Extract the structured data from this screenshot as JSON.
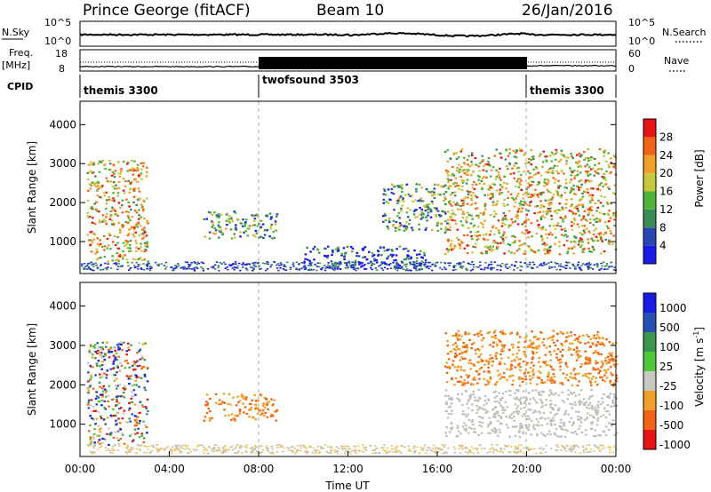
{
  "header": {
    "station": "Prince George (fitACF)",
    "beam": "Beam 10",
    "date": "26/Jan/2016"
  },
  "noise_panel": {
    "left_label": "N.Sky",
    "right_label": "N.Search",
    "left_ticks": [
      "10^5",
      "10^0"
    ],
    "right_ticks": [
      "10^5",
      "10^0"
    ]
  },
  "freq_panel": {
    "left_label_1": "Freq.",
    "left_label_2": "[MHz]",
    "right_label": "Nave",
    "left_ticks": [
      "18",
      "8"
    ],
    "right_ticks": [
      "60",
      "0"
    ]
  },
  "cpid_panel": {
    "label": "CPID",
    "modes": [
      {
        "name": "themis 3300",
        "start_hour": 0,
        "end_hour": 8
      },
      {
        "name": "twofsound 3503",
        "start_hour": 8,
        "end_hour": 20
      },
      {
        "name": "themis 3300",
        "start_hour": 20,
        "end_hour": 24
      }
    ]
  },
  "x_axis": {
    "label": "Time UT",
    "ticks": [
      "00:00",
      "04:00",
      "08:00",
      "12:00",
      "16:00",
      "20:00",
      "00:00"
    ]
  },
  "colors": {
    "power_scale": [
      "#1a1ae6",
      "#2846b4",
      "#3c8c5a",
      "#50b43c",
      "#c8c83c",
      "#f0a028",
      "#f06414",
      "#e61414"
    ],
    "velocity_scale": [
      "#1a1ae6",
      "#2850b4",
      "#3c9650",
      "#50c83c",
      "#c8c8c0",
      "#f0a028",
      "#f06414",
      "#e61414"
    ],
    "ground_scatter": "#c0c0b8"
  },
  "chart_data": [
    {
      "type": "heatmap",
      "title": "",
      "xlabel": "",
      "ylabel": "Slant Range [km]",
      "xlim": [
        0,
        24
      ],
      "ylim": [
        180,
        4600
      ],
      "yticks": [
        "1000",
        "2000",
        "3000",
        "4000"
      ],
      "colorbar": {
        "label": "Power [dB]",
        "range": [
          0,
          32
        ],
        "ticks": [
          "4",
          "8",
          "12",
          "16",
          "20",
          "24",
          "28"
        ]
      },
      "regions": [
        {
          "t0": 0.3,
          "t1": 3.0,
          "r0": 500,
          "r1": 3100,
          "level": "high"
        },
        {
          "t0": 5.5,
          "t1": 8.8,
          "r0": 1100,
          "r1": 1800,
          "level": "medium"
        },
        {
          "t0": 10.0,
          "t1": 15.5,
          "r0": 300,
          "r1": 900,
          "level": "low"
        },
        {
          "t0": 13.5,
          "t1": 16.5,
          "r0": 1300,
          "r1": 2500,
          "level": "medium"
        },
        {
          "t0": 16.3,
          "t1": 24.0,
          "r0": 700,
          "r1": 3400,
          "level": "high"
        }
      ]
    },
    {
      "type": "heatmap",
      "title": "",
      "xlabel": "Time UT",
      "ylabel": "Slant Range [km]",
      "xlim": [
        0,
        24
      ],
      "ylim": [
        180,
        4600
      ],
      "yticks": [
        "1000",
        "2000",
        "3000",
        "4000"
      ],
      "colorbar": {
        "label": "Velocity [m s",
        "label_sup": "-1",
        "label_end": "]",
        "ticks": [
          "1000",
          "500",
          "100",
          "25",
          "-25",
          "-100",
          "-500",
          "-1000"
        ]
      },
      "regions": [
        {
          "t0": 0.3,
          "t1": 3.0,
          "r0": 500,
          "r1": 3100,
          "level": "mixed"
        },
        {
          "t0": 5.5,
          "t1": 8.8,
          "r0": 1100,
          "r1": 1800,
          "level": "away"
        },
        {
          "t0": 16.3,
          "t1": 24.0,
          "r0": 2000,
          "r1": 3400,
          "level": "away"
        },
        {
          "t0": 16.3,
          "t1": 24.0,
          "r0": 700,
          "r1": 1900,
          "level": "ground"
        }
      ]
    }
  ]
}
